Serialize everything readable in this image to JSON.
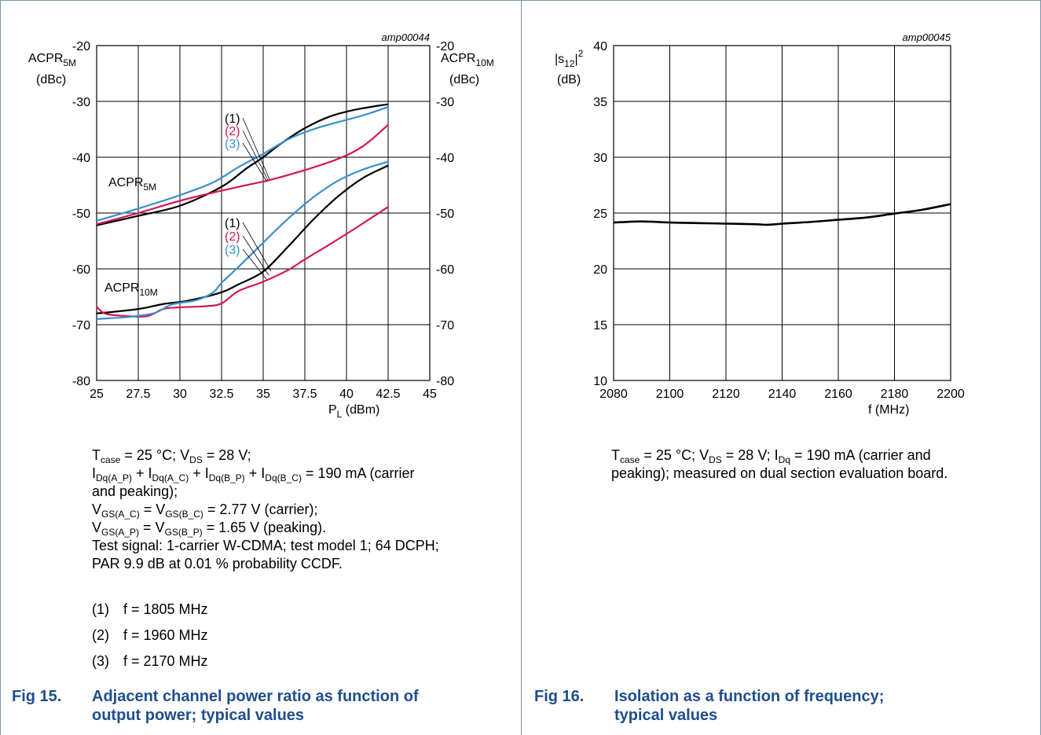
{
  "fig15": {
    "code": "amp00044",
    "number": "Fig 15.",
    "title_line1": "Adjacent channel power ratio as function of",
    "title_line2": "output power; typical values",
    "caption": {
      "l1a": "T",
      "l1s1": "case",
      "l1b": " = 25 °C; V",
      "l1s2": "DS",
      "l1c": " = 28 V;",
      "l2a": "I",
      "l2s1": "Dq(A_P)",
      "l2b": " + I",
      "l2s2": "Dq(A_C)",
      "l2c": " + I",
      "l2s3": "Dq(B_P)",
      "l2d": " + I",
      "l2s4": "Dq(B_C)",
      "l2e": " = 190 mA (carrier",
      "l3": "and peaking);",
      "l4a": "V",
      "l4s1": "GS(A_C)",
      "l4b": " = V",
      "l4s2": "GS(B_C)",
      "l4c": " = 2.77 V (carrier);",
      "l5a": "V",
      "l5s1": "GS(A_P)",
      "l5b": " = V",
      "l5s2": "GS(B_P)",
      "l5c": " = 1.65 V (peaking).",
      "l6": "Test signal: 1-carrier W-CDMA; test model 1; 64 DCPH;",
      "l7": "PAR 9.9 dB at 0.01 % probability CCDF."
    },
    "notes": [
      {
        "num": "(1)",
        "text": "f = 1805 MHz"
      },
      {
        "num": "(2)",
        "text": "f = 1960 MHz"
      },
      {
        "num": "(3)",
        "text": "f = 2170 MHz"
      }
    ]
  },
  "fig16": {
    "code": "amp00045",
    "number": "Fig 16.",
    "title_line1": "Isolation as a function of frequency;",
    "title_line2": "typical values",
    "caption": {
      "l1a": "T",
      "l1s1": "case",
      "l1b": " = 25 °C; V",
      "l1s2": "DS",
      "l1c": " = 28 V; I",
      "l1s3": "Dq",
      "l1d": " = 190 mA (carrier and",
      "l2": "peaking); measured on dual section evaluation board."
    }
  },
  "colors": {
    "c1805": "#000000",
    "c1960": "#d4145a",
    "c2170": "#3a8fd0",
    "grid": "#000000",
    "figtitle": "#1f4e8c"
  },
  "chart_data": [
    {
      "type": "line",
      "xlim": [
        25,
        45
      ],
      "ylim": [
        -80,
        -20
      ],
      "xticks": [
        "25",
        "27.5",
        "30",
        "32.5",
        "35",
        "37.5",
        "40",
        "42.5",
        "45"
      ],
      "yticks_left": [
        "-20",
        "-30",
        "-40",
        "-50",
        "-60",
        "-70",
        "-80"
      ],
      "yticks_right": [
        "-20",
        "-30",
        "-40",
        "-50",
        "-60",
        "-70",
        "-80"
      ],
      "xlabel_main": "P",
      "xlabel_sub": "L",
      "xlabel_rest": " (dBm)",
      "ylabel_left_main": "ACPR",
      "ylabel_left_sub": "5M",
      "ylabel_left_unit": "(dBc)",
      "ylabel_right_main": "ACPR",
      "ylabel_right_sub": "10M",
      "ylabel_right_unit": "(dBc)",
      "group_labels": [
        {
          "main": "ACPR",
          "sub": "5M"
        },
        {
          "main": "ACPR",
          "sub": "10M"
        }
      ],
      "marker_labels": [
        "(1)",
        "(2)",
        "(3)"
      ],
      "grid": true,
      "series": [
        {
          "group": "ACPR5M",
          "marker": "(1)",
          "color": "#000000",
          "x": [
            25,
            27.5,
            30,
            32.5,
            34,
            35,
            36,
            37.5,
            39,
            40.5,
            42.5
          ],
          "y": [
            -52.2,
            -50.5,
            -48.7,
            -45.3,
            -42,
            -40,
            -37.7,
            -34.8,
            -32.7,
            -31.5,
            -30.5
          ]
        },
        {
          "group": "ACPR5M",
          "marker": "(2)",
          "color": "#d4145a",
          "x": [
            25,
            27.5,
            30,
            32.5,
            34,
            35.5,
            37.5,
            39.5,
            41,
            42.5
          ],
          "y": [
            -52,
            -50,
            -47.8,
            -46,
            -45,
            -44,
            -42.3,
            -40.3,
            -38,
            -34.2
          ]
        },
        {
          "group": "ACPR5M",
          "marker": "(3)",
          "color": "#3a8fd0",
          "x": [
            25,
            27.5,
            30,
            32,
            33.5,
            35,
            36.5,
            38,
            39.5,
            41,
            42.5
          ],
          "y": [
            -51.4,
            -49.2,
            -46.8,
            -44.5,
            -41.8,
            -39.4,
            -36.8,
            -35,
            -33.7,
            -32.5,
            -31
          ]
        },
        {
          "group": "ACPR10M",
          "marker": "(1)",
          "color": "#000000",
          "x": [
            25,
            27.5,
            29,
            30.5,
            32.5,
            33.5,
            35,
            36.5,
            38,
            39.5,
            41,
            42.5
          ],
          "y": [
            -68,
            -67.2,
            -66.3,
            -65.7,
            -64.2,
            -62.8,
            -60.5,
            -56,
            -51.2,
            -47,
            -43.7,
            -41.5
          ]
        },
        {
          "group": "ACPR10M",
          "marker": "(2)",
          "color": "#d4145a",
          "x": [
            25,
            25.5,
            26.5,
            28,
            29,
            30,
            31.5,
            32.5,
            33.5,
            35,
            36.5,
            37.5,
            39,
            40.5,
            42.5
          ],
          "y": [
            -66.8,
            -68,
            -68.4,
            -68.5,
            -67.2,
            -66.9,
            -66.7,
            -66.2,
            -64,
            -62.3,
            -60.2,
            -58.3,
            -55.6,
            -52.8,
            -48.9
          ]
        },
        {
          "group": "ACPR10M",
          "marker": "(3)",
          "color": "#3a8fd0",
          "x": [
            25,
            27,
            28.5,
            29.5,
            31,
            32,
            32.5,
            33.5,
            35,
            36.5,
            38,
            39.5,
            41,
            42.5
          ],
          "y": [
            -69,
            -68.6,
            -67.9,
            -66.4,
            -65.6,
            -64.2,
            -62.5,
            -59.7,
            -55.3,
            -51,
            -47.2,
            -44.2,
            -42.2,
            -40.8
          ]
        }
      ]
    },
    {
      "type": "line",
      "xlim": [
        2080,
        2200
      ],
      "ylim": [
        10,
        40
      ],
      "xticks": [
        "2080",
        "2100",
        "2120",
        "2140",
        "2160",
        "2180",
        "2200"
      ],
      "yticks": [
        "40",
        "35",
        "30",
        "25",
        "20",
        "15",
        "10"
      ],
      "xlabel": "f (MHz)",
      "ylabel_pre": "|s",
      "ylabel_sub": "12",
      "ylabel_post": "|",
      "ylabel_sup": "2",
      "ylabel_unit": "(dB)",
      "grid": true,
      "series": [
        {
          "color": "#000000",
          "x": [
            2080,
            2090,
            2100,
            2110,
            2120,
            2130,
            2135,
            2140,
            2150,
            2160,
            2170,
            2180,
            2190,
            2200
          ],
          "y": [
            24.15,
            24.25,
            24.15,
            24.1,
            24.05,
            24.0,
            23.95,
            24.05,
            24.2,
            24.4,
            24.6,
            24.95,
            25.3,
            25.8
          ]
        }
      ]
    }
  ]
}
